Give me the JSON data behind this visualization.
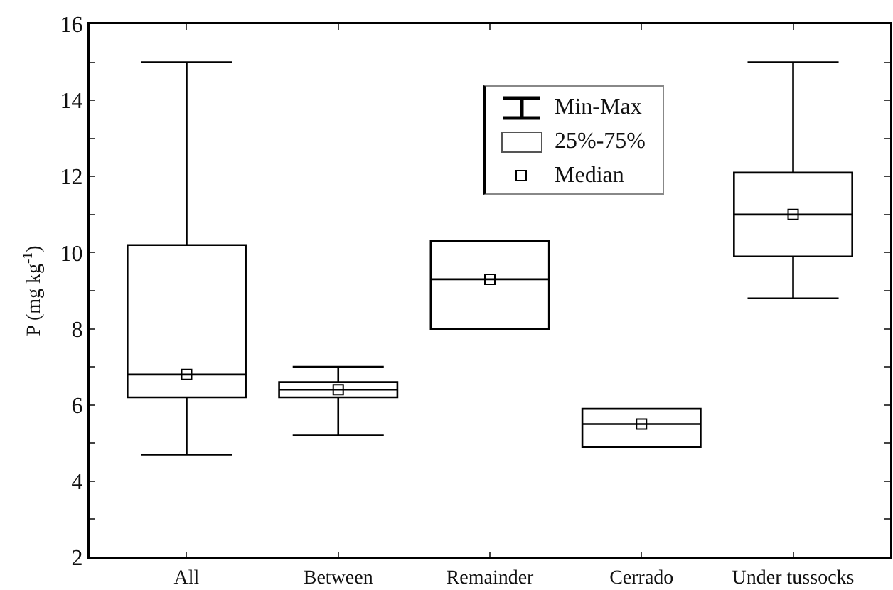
{
  "chart_data": {
    "type": "box",
    "ylabel": "P (mg kg$^{-1}$)",
    "categories": [
      "All",
      "Between",
      "Remainder",
      "Cerrado",
      "Under tussocks"
    ],
    "boxes": [
      {
        "low": 4.7,
        "q1": 6.2,
        "median": 6.8,
        "q3": 10.2,
        "high": 15
      },
      {
        "low": 5.2,
        "q1": 6.2,
        "median": 6.4,
        "q3": 6.6,
        "high": 7.0
      },
      {
        "low": 8.0,
        "q1": 8.0,
        "median": 9.3,
        "q3": 10.3,
        "high": 10.3
      },
      {
        "low": 4.9,
        "q1": 4.9,
        "median": 5.5,
        "q3": 5.9,
        "high": 5.9
      },
      {
        "low": 8.8,
        "q1": 9.9,
        "median": 11.0,
        "q3": 12.1,
        "high": 15
      }
    ],
    "ylim": [
      2,
      16
    ],
    "yticks": [
      2,
      {
        "value": 3,
        "label": null
      },
      4,
      {
        "value": 5,
        "label": null
      },
      6,
      {
        "value": 7,
        "label": null
      },
      8,
      {
        "value": 9,
        "label": null
      },
      10,
      {
        "value": 11,
        "label": null
      },
      12,
      {
        "value": 13,
        "label": null
      },
      14,
      {
        "value": 15,
        "label": null
      },
      16
    ],
    "series": [
      {
        "type": "scatter",
        "name": "Median",
        "color": "#000000",
        "x": [
          "All",
          "Between",
          "Remainder",
          "Cerrado",
          "Under tussocks"
        ],
        "values": [
          6.8,
          6.4,
          9.3,
          5.5,
          11.0
        ]
      }
    ],
    "marker": "square",
    "grid": false,
    "legend": "top",
    "annotations": [
      "Min-Max",
      "25%-75%"
    ]
  }
}
